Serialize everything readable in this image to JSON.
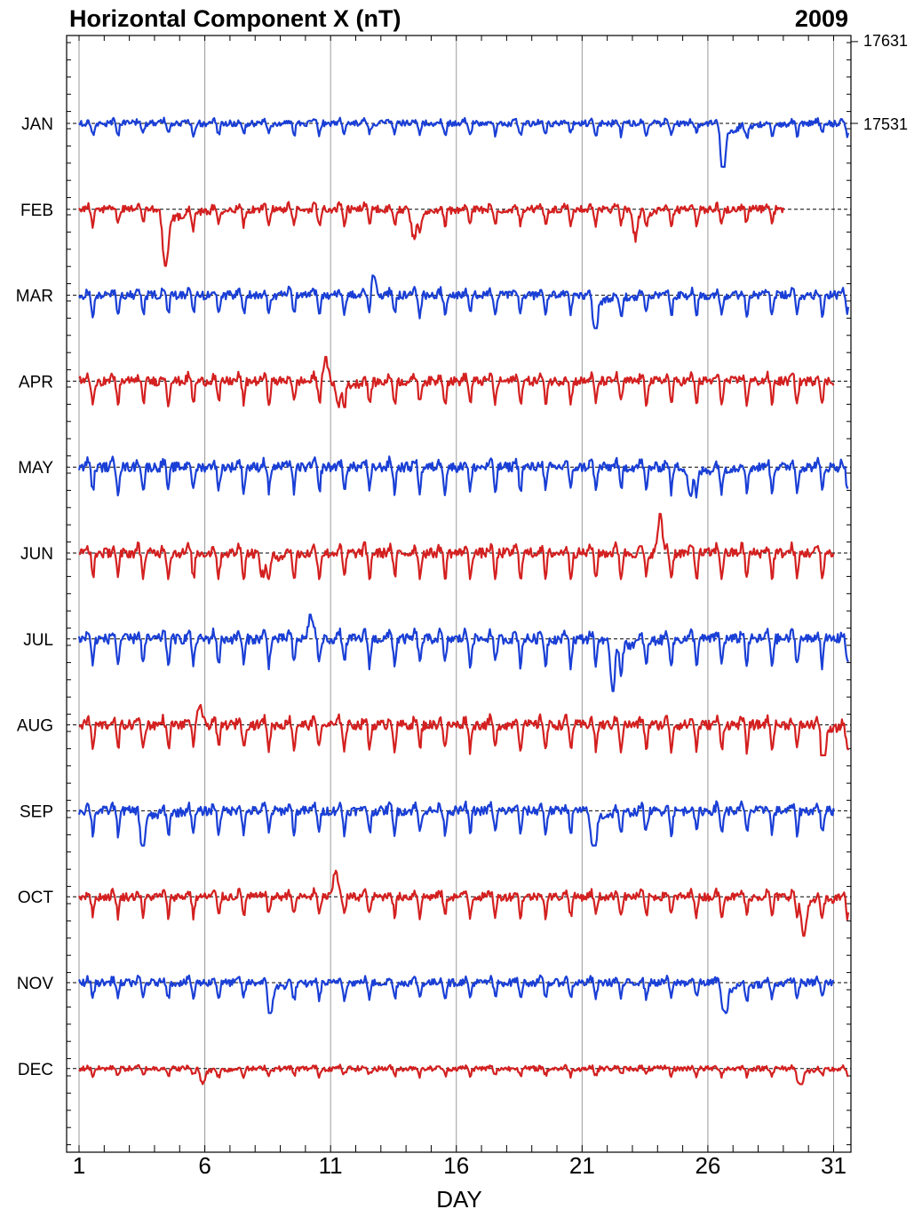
{
  "chart_data": {
    "type": "line",
    "title": "Horizontal Component X (nT)",
    "year_label": "2009",
    "xlabel": "DAY",
    "x_ticks": [
      "1",
      "6",
      "11",
      "16",
      "21",
      "26",
      "31"
    ],
    "xlim": [
      1,
      32
    ],
    "baseline_nT": 17531,
    "scale_labels": [
      "17631",
      "17531"
    ],
    "scale_offset_nT": 100,
    "colors": {
      "odd_months": "#1a3fd6",
      "even_months": "#d42020",
      "baseline": "#000000",
      "grid": "#9a9a9a"
    },
    "series": [
      {
        "name": "JAN",
        "days": 31,
        "min_dev": -50,
        "max_dev": 18,
        "events": [
          {
            "day": 26.6,
            "dev": -50
          }
        ]
      },
      {
        "name": "FEB",
        "days": 28,
        "min_dev": -65,
        "max_dev": 20,
        "events": [
          {
            "day": 4.4,
            "dev": -65
          },
          {
            "day": 14.3,
            "dev": -35
          },
          {
            "day": 23.1,
            "dev": -30
          }
        ]
      },
      {
        "name": "MAR",
        "days": 31,
        "min_dev": -38,
        "max_dev": 25,
        "events": [
          {
            "day": 12.7,
            "dev": 25
          },
          {
            "day": 21.5,
            "dev": -38
          }
        ]
      },
      {
        "name": "APR",
        "days": 30,
        "min_dev": -30,
        "max_dev": 28,
        "events": [
          {
            "day": 10.8,
            "dev": 28
          },
          {
            "day": 11.3,
            "dev": -30
          }
        ]
      },
      {
        "name": "MAY",
        "days": 31,
        "min_dev": -35,
        "max_dev": 20,
        "events": [
          {
            "day": 25.3,
            "dev": -35
          }
        ]
      },
      {
        "name": "JUN",
        "days": 30,
        "min_dev": -30,
        "max_dev": 45,
        "events": [
          {
            "day": 24.1,
            "dev": 45
          },
          {
            "day": 8.3,
            "dev": -30
          }
        ]
      },
      {
        "name": "JUL",
        "days": 31,
        "min_dev": -60,
        "max_dev": 28,
        "events": [
          {
            "day": 22.2,
            "dev": -60
          },
          {
            "day": 10.2,
            "dev": 28
          }
        ]
      },
      {
        "name": "AUG",
        "days": 31,
        "min_dev": -35,
        "max_dev": 25,
        "events": [
          {
            "day": 5.8,
            "dev": 25
          },
          {
            "day": 30.6,
            "dev": -35
          }
        ]
      },
      {
        "name": "SEP",
        "days": 30,
        "min_dev": -40,
        "max_dev": 20,
        "events": [
          {
            "day": 3.5,
            "dev": -40
          },
          {
            "day": 21.4,
            "dev": -40
          }
        ]
      },
      {
        "name": "OCT",
        "days": 31,
        "min_dev": -45,
        "max_dev": 30,
        "events": [
          {
            "day": 11.2,
            "dev": 30
          },
          {
            "day": 29.8,
            "dev": -45
          }
        ]
      },
      {
        "name": "NOV",
        "days": 30,
        "min_dev": -35,
        "max_dev": 15,
        "events": [
          {
            "day": 8.6,
            "dev": -30
          },
          {
            "day": 26.7,
            "dev": -35
          }
        ]
      },
      {
        "name": "DEC",
        "days": 31,
        "min_dev": -18,
        "max_dev": 10,
        "events": [
          {
            "day": 5.9,
            "dev": -15
          },
          {
            "day": 29.7,
            "dev": -18
          }
        ]
      }
    ]
  }
}
